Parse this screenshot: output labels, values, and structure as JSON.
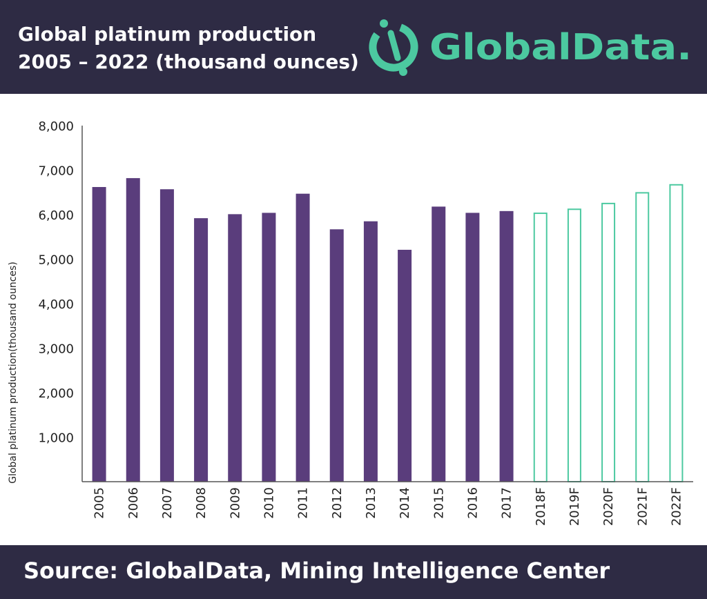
{
  "header": {
    "title_line1": "Global platinum production",
    "title_line2": "2005 – 2022 (thousand ounces)",
    "logo_text": "GlobalData."
  },
  "footer": {
    "source": "Source: GlobalData, Mining Intelligence Center"
  },
  "colors": {
    "background_band": "#2e2b44",
    "actual_bar": "#5a3d7c",
    "forecast_outline": "#4cc9a0",
    "logo": "#4cc9a0"
  },
  "icons": {
    "logo_mark": "globaldata-logo-icon"
  },
  "chart_data": {
    "type": "bar",
    "categories": [
      "2005",
      "2006",
      "2007",
      "2008",
      "2009",
      "2010",
      "2011",
      "2012",
      "2013",
      "2014",
      "2015",
      "2016",
      "2017",
      "2018F",
      "2019F",
      "2020F",
      "2021F",
      "2022F"
    ],
    "values": [
      6620,
      6820,
      6570,
      5920,
      6010,
      6040,
      6470,
      5670,
      5850,
      5210,
      6180,
      6040,
      6080,
      6030,
      6120,
      6250,
      6490,
      6670
    ],
    "forecast_from_index": 13,
    "ylabel": "Global platinum production(thousand ounces)",
    "ylim": [
      0,
      8000
    ],
    "yticks": [
      1000,
      2000,
      3000,
      4000,
      5000,
      6000,
      7000,
      8000
    ],
    "ytick_labels": [
      "1,000",
      "2,000",
      "3,000",
      "4,000",
      "5,000",
      "6,000",
      "7,000",
      "8,000"
    ],
    "grid": false,
    "legend": "none"
  }
}
